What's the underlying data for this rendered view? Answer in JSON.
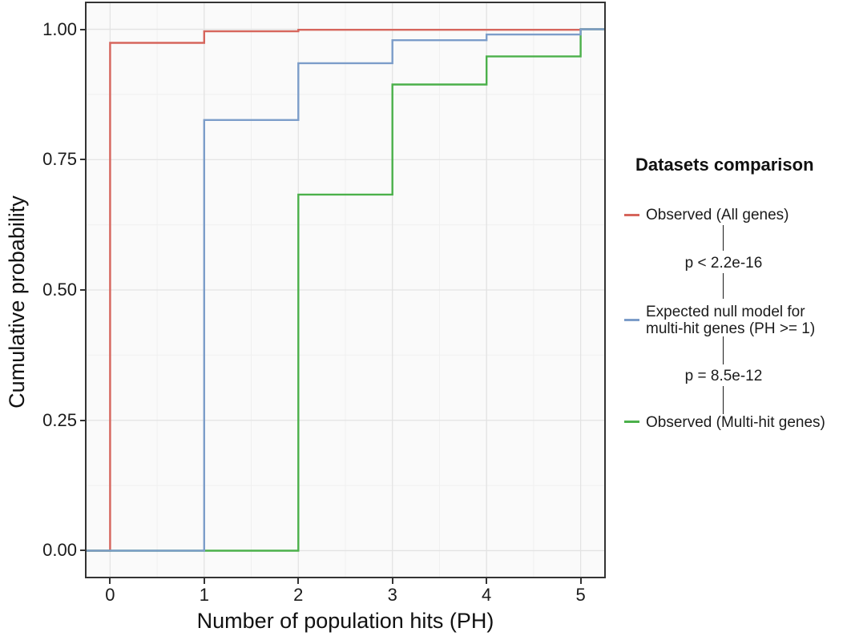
{
  "chart_data": {
    "type": "line",
    "subtype": "ecdf-step",
    "title": "",
    "xlabel": "Number of population hits (PH)",
    "ylabel": "Cumulative probability",
    "xlim": [
      -0.25,
      5.25
    ],
    "ylim": [
      -0.05,
      1.05
    ],
    "grid": "major+minor",
    "x_ticks": [
      0,
      1,
      2,
      3,
      4,
      5
    ],
    "x_tick_labels": [
      "0",
      "1",
      "2",
      "3",
      "4",
      "5"
    ],
    "x_minor": [
      0.5,
      1.5,
      2.5,
      3.5,
      4.5
    ],
    "y_ticks": [
      0,
      0.25,
      0.5,
      0.75,
      1.0
    ],
    "y_tick_labels": [
      "0.00",
      "0.25",
      "0.50",
      "0.75",
      "1.00"
    ],
    "y_minor": [
      0.125,
      0.375,
      0.625,
      0.875
    ],
    "colors": {
      "red": "#d6655c",
      "blue": "#7c9dc9",
      "green": "#4bb04a",
      "panel_bg": "#fafafa",
      "grid_major": "#e3e3e3",
      "grid_minor": "#f0f0f0",
      "border": "#333333"
    },
    "series": [
      {
        "name": "Observed (All genes)",
        "color": "#d6655c",
        "points": [
          [
            -0.25,
            0
          ],
          [
            0,
            0
          ],
          [
            0,
            0.974
          ],
          [
            1,
            0.974
          ],
          [
            1,
            0.996
          ],
          [
            2,
            0.996
          ],
          [
            2,
            0.999
          ],
          [
            5,
            0.999
          ],
          [
            5,
            1
          ],
          [
            5.25,
            1
          ]
        ]
      },
      {
        "name": "Observed (Multi-hit genes)",
        "color": "#4bb04a",
        "points": [
          [
            -0.25,
            0
          ],
          [
            2,
            0
          ],
          [
            2,
            0.683
          ],
          [
            3,
            0.683
          ],
          [
            3,
            0.894
          ],
          [
            4,
            0.894
          ],
          [
            4,
            0.948
          ],
          [
            5,
            0.948
          ],
          [
            5,
            1
          ],
          [
            5.25,
            1
          ]
        ]
      },
      {
        "name": "Expected null model for multi-hit genes (PH >= 1)",
        "color": "#7c9dc9",
        "points": [
          [
            -0.25,
            0
          ],
          [
            1,
            0
          ],
          [
            1,
            0.826
          ],
          [
            2,
            0.826
          ],
          [
            2,
            0.935
          ],
          [
            3,
            0.935
          ],
          [
            3,
            0.979
          ],
          [
            4,
            0.979
          ],
          [
            4,
            0.99
          ],
          [
            5,
            0.99
          ],
          [
            5,
            1
          ],
          [
            5.25,
            1
          ]
        ]
      }
    ],
    "legend": {
      "position": "right",
      "title": "Datasets comparison",
      "entries": [
        {
          "id": "observed-all-genes",
          "color": "#d6655c",
          "label_lines": [
            "Observed (All genes)"
          ]
        },
        {
          "id": "expected-null-model",
          "color": "#7c9dc9",
          "label_lines": [
            "Expected null model for",
            "multi-hit genes (PH >= 1)"
          ]
        },
        {
          "id": "observed-multi-hit-genes",
          "color": "#4bb04a",
          "label_lines": [
            "Observed (Multi-hit genes)"
          ]
        }
      ],
      "p_values": [
        "p < 2.2e-16",
        "p = 8.5e-12"
      ]
    }
  }
}
